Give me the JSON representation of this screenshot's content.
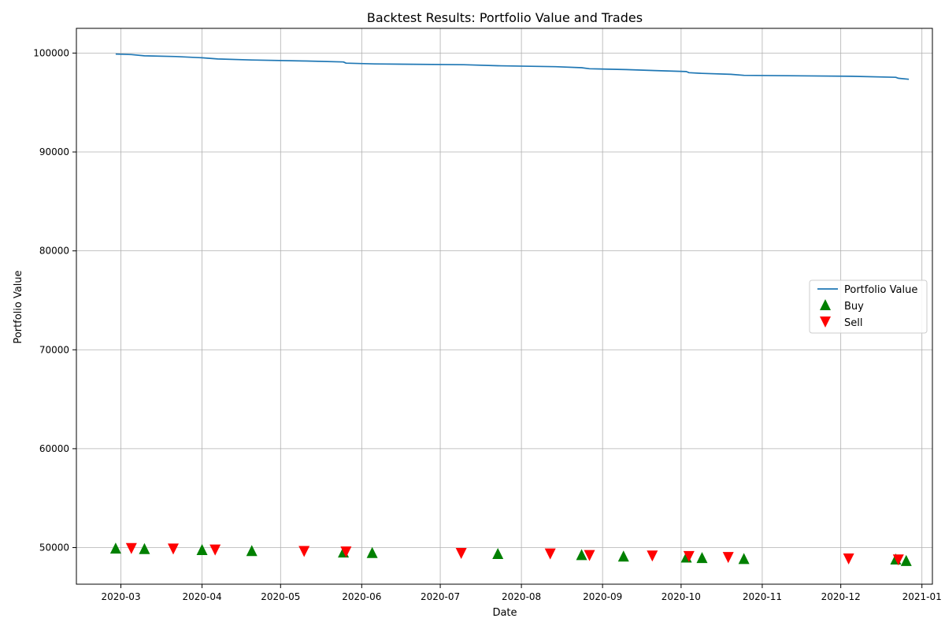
{
  "chart_data": {
    "type": "line",
    "title": "Backtest Results: Portfolio Value and Trades",
    "xlabel": "Date",
    "ylabel": "Portfolio Value",
    "x_range": [
      "2020-02-13",
      "2021-01-05"
    ],
    "ylim": [
      46300,
      102500
    ],
    "grid": true,
    "legend_position": "center-right",
    "x_ticks": [
      "2020-03",
      "2020-04",
      "2020-05",
      "2020-06",
      "2020-07",
      "2020-08",
      "2020-09",
      "2020-10",
      "2020-11",
      "2020-12",
      "2021-01"
    ],
    "y_ticks": [
      50000,
      60000,
      70000,
      80000,
      90000,
      100000
    ],
    "legend": {
      "line_label": "Portfolio Value",
      "buy_label": "Buy",
      "sell_label": "Sell"
    },
    "colors": {
      "line": "#1f77b4",
      "buy": "#008000",
      "sell": "#ff0000",
      "grid": "#b0b0b0"
    },
    "series": [
      {
        "name": "Portfolio Value",
        "kind": "line",
        "points": [
          {
            "date": "2020-02-28",
            "value": 99900
          },
          {
            "date": "2020-03-05",
            "value": 99850
          },
          {
            "date": "2020-03-10",
            "value": 99720
          },
          {
            "date": "2020-03-22",
            "value": 99650
          },
          {
            "date": "2020-04-01",
            "value": 99520
          },
          {
            "date": "2020-04-07",
            "value": 99400
          },
          {
            "date": "2020-04-20",
            "value": 99300
          },
          {
            "date": "2020-05-11",
            "value": 99200
          },
          {
            "date": "2020-05-25",
            "value": 99100
          },
          {
            "date": "2020-05-26",
            "value": 98980
          },
          {
            "date": "2020-06-06",
            "value": 98900
          },
          {
            "date": "2020-07-10",
            "value": 98820
          },
          {
            "date": "2020-07-23",
            "value": 98720
          },
          {
            "date": "2020-08-14",
            "value": 98620
          },
          {
            "date": "2020-08-24",
            "value": 98520
          },
          {
            "date": "2020-08-27",
            "value": 98420
          },
          {
            "date": "2020-09-10",
            "value": 98330
          },
          {
            "date": "2020-09-21",
            "value": 98230
          },
          {
            "date": "2020-10-03",
            "value": 98130
          },
          {
            "date": "2020-10-04",
            "value": 98020
          },
          {
            "date": "2020-10-09",
            "value": 97950
          },
          {
            "date": "2020-10-20",
            "value": 97850
          },
          {
            "date": "2020-10-25",
            "value": 97750
          },
          {
            "date": "2020-12-05",
            "value": 97650
          },
          {
            "date": "2020-12-22",
            "value": 97550
          },
          {
            "date": "2020-12-23",
            "value": 97450
          },
          {
            "date": "2020-12-27",
            "value": 97350
          }
        ]
      },
      {
        "name": "Buy",
        "kind": "marker-up",
        "points": [
          {
            "date": "2020-02-28",
            "value": 49950
          },
          {
            "date": "2020-03-10",
            "value": 49900
          },
          {
            "date": "2020-04-01",
            "value": 49800
          },
          {
            "date": "2020-04-20",
            "value": 49700
          },
          {
            "date": "2020-05-25",
            "value": 49550
          },
          {
            "date": "2020-06-05",
            "value": 49500
          },
          {
            "date": "2020-07-23",
            "value": 49400
          },
          {
            "date": "2020-08-24",
            "value": 49300
          },
          {
            "date": "2020-09-09",
            "value": 49150
          },
          {
            "date": "2020-10-03",
            "value": 49050
          },
          {
            "date": "2020-10-09",
            "value": 49000
          },
          {
            "date": "2020-10-25",
            "value": 48900
          },
          {
            "date": "2020-12-22",
            "value": 48850
          },
          {
            "date": "2020-12-26",
            "value": 48700
          }
        ]
      },
      {
        "name": "Sell",
        "kind": "marker-down",
        "points": [
          {
            "date": "2020-03-05",
            "value": 49900
          },
          {
            "date": "2020-03-21",
            "value": 49850
          },
          {
            "date": "2020-04-06",
            "value": 49750
          },
          {
            "date": "2020-05-10",
            "value": 49600
          },
          {
            "date": "2020-05-26",
            "value": 49550
          },
          {
            "date": "2020-07-09",
            "value": 49400
          },
          {
            "date": "2020-08-12",
            "value": 49350
          },
          {
            "date": "2020-08-27",
            "value": 49200
          },
          {
            "date": "2020-09-20",
            "value": 49150
          },
          {
            "date": "2020-10-04",
            "value": 49100
          },
          {
            "date": "2020-10-19",
            "value": 49000
          },
          {
            "date": "2020-12-04",
            "value": 48850
          },
          {
            "date": "2020-12-23",
            "value": 48750
          }
        ]
      }
    ]
  }
}
